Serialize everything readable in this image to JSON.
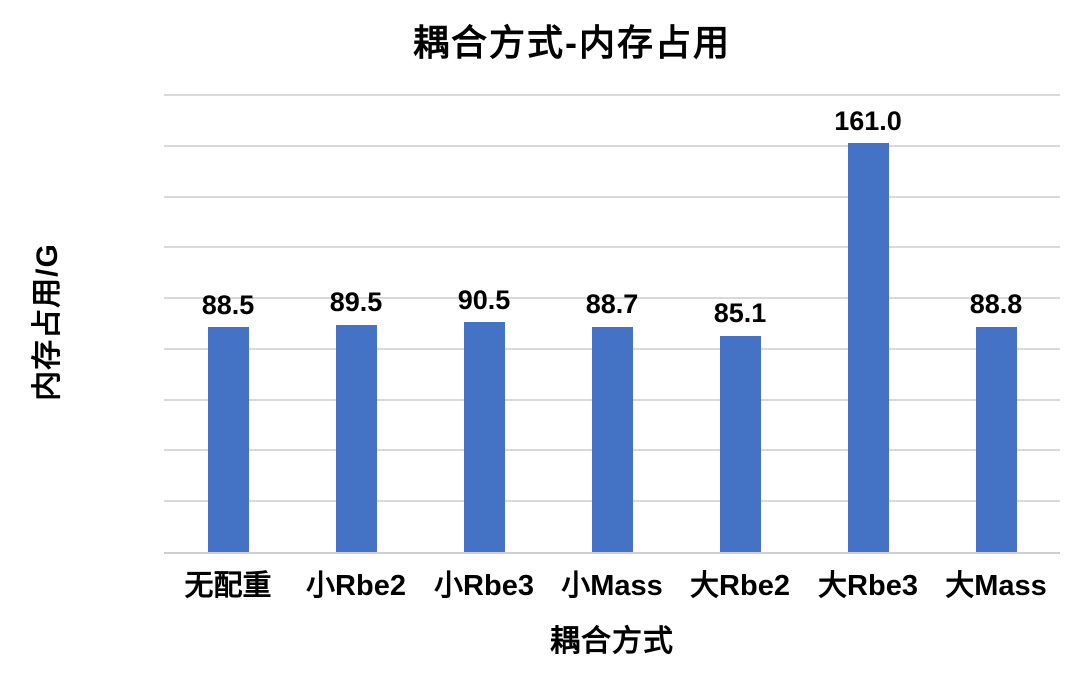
{
  "chart_data": {
    "type": "bar",
    "title": "耦合方式-内存占用",
    "xlabel": "耦合方式",
    "ylabel": "内存占用/G",
    "categories": [
      "无配重",
      "小Rbe2",
      "小Rbe3",
      "小Mass",
      "大Rbe2",
      "大Rbe3",
      "大Mass"
    ],
    "values": [
      88.5,
      89.5,
      90.5,
      88.7,
      85.1,
      161.0,
      88.8
    ],
    "value_labels": [
      "88.5",
      "89.5",
      "90.5",
      "88.7",
      "85.1",
      "161.0",
      "88.8"
    ],
    "ylim": [
      0,
      180
    ],
    "ytick_step": 20,
    "yticks": [
      "0.0",
      "20.0",
      "40.0",
      "60.0",
      "80.0",
      "100.0",
      "120.0",
      "140.0",
      "160.0",
      "180.0"
    ],
    "grid": "horizontal",
    "legend": "none",
    "bar_color": "#4472C4",
    "gridline_color": "#D9D9D9",
    "axis_line_color": "#D0CECE",
    "text_color": "#000000"
  }
}
